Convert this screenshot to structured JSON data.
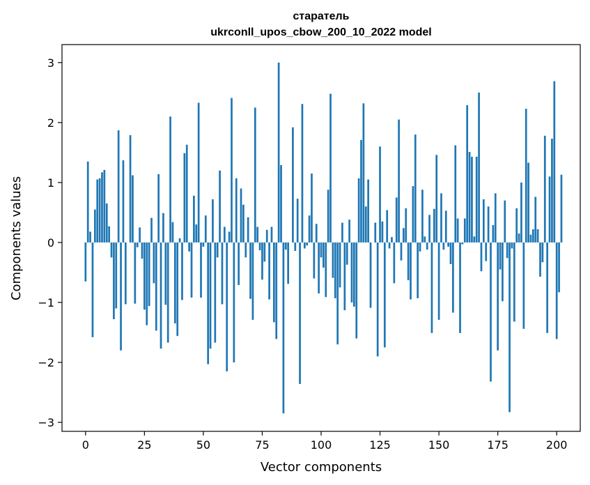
{
  "chart_data": {
    "type": "bar",
    "title": "старатель",
    "subtitle": "ukrconll_upos_cbow_200_10_2022 model",
    "xlabel": "Vector components",
    "ylabel": "Components values",
    "xlim": [
      -10,
      210
    ],
    "ylim": [
      -3.15,
      3.3
    ],
    "xticks": [
      0,
      25,
      50,
      75,
      100,
      125,
      150,
      175,
      200
    ],
    "yticks": [
      -3,
      -2,
      -1,
      0,
      1,
      2,
      3
    ],
    "xtick_labels": [
      "0",
      "25",
      "50",
      "75",
      "100",
      "125",
      "150",
      "175",
      "200"
    ],
    "ytick_labels": [
      "−3",
      "−2",
      "−1",
      "0",
      "1",
      "2",
      "3"
    ],
    "grid": false,
    "bar_color": "#1f77b4",
    "values": [
      -0.65,
      1.35,
      0.18,
      -1.58,
      0.55,
      1.05,
      1.07,
      1.17,
      1.21,
      0.65,
      0.27,
      -0.25,
      -1.28,
      -1.1,
      1.87,
      -1.8,
      1.37,
      -1.03,
      0.0,
      1.79,
      1.12,
      -1.02,
      -0.08,
      0.25,
      -0.27,
      -1.12,
      -1.38,
      -1.06,
      0.41,
      -0.68,
      -1.47,
      1.14,
      -1.77,
      0.49,
      -1.04,
      -1.67,
      2.1,
      0.34,
      -1.35,
      -1.56,
      0.07,
      -0.96,
      1.49,
      1.63,
      -0.15,
      -0.92,
      0.78,
      0.3,
      2.33,
      -0.92,
      -0.07,
      0.45,
      -2.03,
      -1.77,
      0.72,
      -1.67,
      -0.25,
      1.2,
      -1.03,
      0.26,
      -2.15,
      0.18,
      2.41,
      -2.0,
      1.07,
      -0.71,
      0.9,
      0.63,
      -0.25,
      0.42,
      -0.94,
      -1.29,
      2.25,
      0.26,
      -0.13,
      -0.62,
      -0.32,
      0.21,
      -0.95,
      0.26,
      -1.33,
      -1.61,
      3.0,
      1.29,
      -2.85,
      -0.12,
      -0.69,
      0.0,
      1.92,
      -0.14,
      0.73,
      -2.36,
      2.31,
      -0.1,
      -0.05,
      0.45,
      1.15,
      -0.6,
      0.31,
      -0.85,
      -0.25,
      -0.42,
      -0.91,
      0.88,
      2.48,
      -0.59,
      -0.93,
      -1.7,
      -0.75,
      0.33,
      -1.13,
      -0.37,
      0.38,
      -1.0,
      -1.07,
      -1.6,
      1.07,
      1.71,
      2.32,
      0.6,
      1.05,
      -1.09,
      0.0,
      0.33,
      -1.9,
      1.6,
      0.35,
      -1.75,
      0.54,
      -0.1,
      0.09,
      -0.68,
      0.75,
      2.05,
      -0.3,
      0.24,
      0.57,
      -0.63,
      -0.95,
      0.94,
      1.8,
      -0.93,
      -0.15,
      0.88,
      0.1,
      -0.12,
      0.46,
      -1.51,
      0.56,
      1.46,
      -1.29,
      0.82,
      -0.12,
      0.53,
      -0.07,
      -0.36,
      -1.17,
      1.62,
      0.4,
      -1.51,
      -0.03,
      0.4,
      2.29,
      1.51,
      1.43,
      0.1,
      1.43,
      2.5,
      -0.48,
      0.72,
      -0.31,
      0.6,
      -2.32,
      0.29,
      0.82,
      -1.8,
      -0.45,
      -0.98,
      0.7,
      -0.26,
      -2.83,
      -0.1,
      -1.32,
      0.57,
      0.15,
      1.0,
      -1.44,
      2.23,
      1.33,
      0.13,
      0.22,
      0.76,
      0.22,
      -0.57,
      -0.33,
      1.78,
      -1.51,
      1.1,
      1.73,
      2.69,
      -1.61,
      -0.83,
      1.13
    ]
  }
}
